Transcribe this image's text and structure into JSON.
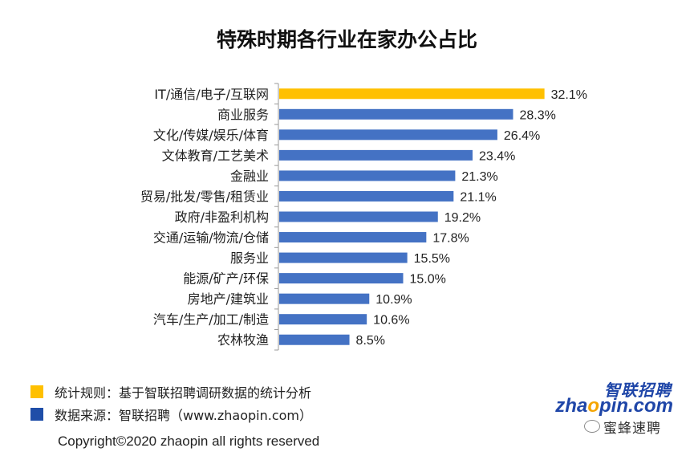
{
  "chart_data": {
    "type": "bar",
    "orientation": "horizontal",
    "title": "特殊时期各行业在家办公占比",
    "categories": [
      "IT/通信/电子/互联网",
      "商业服务",
      "文化/传媒/娱乐/体育",
      "文体教育/工艺美术",
      "金融业",
      "贸易/批发/零售/租赁业",
      "政府/非盈利机构",
      "交通/运输/物流/仓储",
      "服务业",
      "能源/矿产/环保",
      "房地产/建筑业",
      "汽车/生产/加工/制造",
      "农林牧渔"
    ],
    "values": [
      32.1,
      28.3,
      26.4,
      23.4,
      21.3,
      21.1,
      19.2,
      17.8,
      15.5,
      15.0,
      10.9,
      10.6,
      8.5
    ],
    "value_labels": [
      "32.1%",
      "28.3%",
      "26.4%",
      "23.4%",
      "21.3%",
      "21.1%",
      "19.2%",
      "17.8%",
      "15.5%",
      "15.0%",
      "10.9%",
      "10.6%",
      "8.5%"
    ],
    "highlight_index": 0,
    "xlim": [
      0,
      40
    ],
    "grid": false,
    "legend": "none"
  },
  "colors": {
    "highlight": "#FFC000",
    "bar": "#4472C4",
    "axis": "#999999",
    "note_yellow": "#FFC000",
    "note_blue": "#1F4EA8"
  },
  "notes": {
    "rule": "统计规则：基于智联招聘调研数据的统计分析",
    "source": "数据来源：智联招聘（www.zhaopin.com）"
  },
  "copyright": "Copyright©2020 zhaopin all rights reserved",
  "logo": {
    "cn": "智联招聘",
    "en_before": "zha",
    "en_mark": "o",
    "en_after": "pin.com"
  },
  "watermark": "蜜蜂速聘"
}
